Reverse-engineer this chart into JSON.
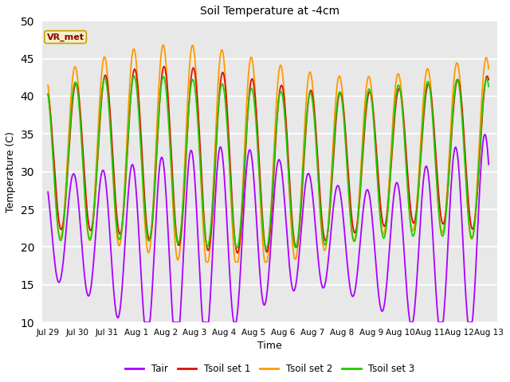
{
  "title": "Soil Temperature at -4cm",
  "xlabel": "Time",
  "ylabel": "Temperature (C)",
  "ylim": [
    10,
    50
  ],
  "xlim_start": -0.2,
  "xlim_end": 15.3,
  "plot_bg_color": "#e8e8e8",
  "fig_bg_color": "#ffffff",
  "grid_color": "white",
  "annotation_text": "VR_met",
  "annotation_bg": "#f5f0c8",
  "annotation_border": "#c8a000",
  "annotation_text_color": "#8b0000",
  "colors": {
    "Tair": "#aa00ff",
    "Tsoil_set1": "#dd1100",
    "Tsoil_set2": "#ff9900",
    "Tsoil_set3": "#22cc00"
  },
  "legend_labels": [
    "Tair",
    "Tsoil set 1",
    "Tsoil set 2",
    "Tsoil set 3"
  ],
  "xtick_labels": [
    "Jul 29",
    "Jul 30",
    "Jul 31",
    "Aug 1",
    "Aug 2",
    "Aug 3",
    "Aug 4",
    "Aug 5",
    "Aug 6",
    "Aug 7",
    "Aug 8",
    "Aug 9",
    "Aug 10",
    "Aug 11",
    "Aug 12",
    "Aug 13"
  ],
  "xtick_positions": [
    0,
    1,
    2,
    3,
    4,
    5,
    6,
    7,
    8,
    9,
    10,
    11,
    12,
    13,
    14,
    15
  ]
}
